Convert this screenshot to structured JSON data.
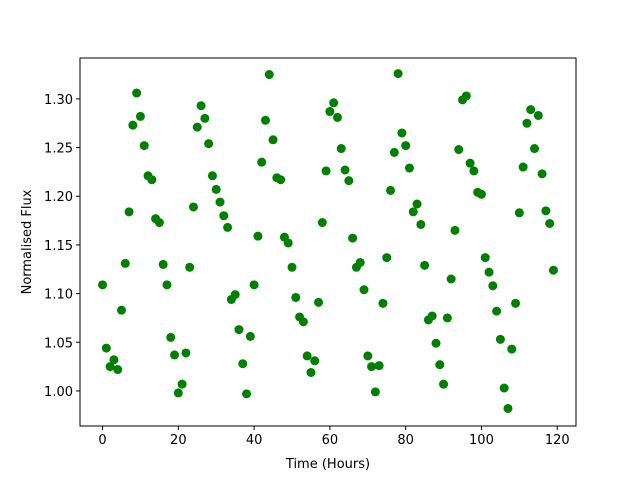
{
  "chart_data": {
    "type": "scatter",
    "color": "green",
    "xlabel": "Time (Hours)",
    "ylabel": "Normalised Flux",
    "x": [
      0,
      1,
      2,
      3,
      4,
      5,
      6,
      7,
      8,
      9,
      10,
      11,
      12,
      13,
      14,
      15,
      16,
      17,
      18,
      19,
      20,
      21,
      22,
      23,
      24,
      25,
      26,
      27,
      28,
      29,
      30,
      31,
      32,
      33,
      34,
      35,
      36,
      37,
      38,
      39,
      40,
      41,
      42,
      43,
      44,
      45,
      46,
      47,
      48,
      49,
      50,
      51,
      52,
      53,
      54,
      55,
      56,
      57,
      58,
      59,
      60,
      61,
      62,
      63,
      64,
      65,
      66,
      67,
      68,
      69,
      70,
      71,
      72,
      73,
      74,
      75,
      76,
      77,
      78,
      79,
      80,
      81,
      82,
      83,
      84,
      85,
      86,
      87,
      88,
      89,
      90,
      91,
      92,
      93,
      94,
      95,
      96,
      97,
      98,
      99,
      100,
      101,
      102,
      103,
      104,
      105,
      106,
      107,
      108,
      109,
      110,
      111,
      112,
      113,
      114,
      115,
      116,
      117,
      118,
      119
    ],
    "values": [
      1.109,
      1.044,
      1.025,
      1.032,
      1.022,
      1.083,
      1.131,
      1.184,
      1.273,
      1.306,
      1.282,
      1.252,
      1.221,
      1.217,
      1.177,
      1.173,
      1.13,
      1.109,
      1.055,
      1.037,
      0.998,
      1.007,
      1.039,
      1.127,
      1.189,
      1.271,
      1.293,
      1.28,
      1.254,
      1.221,
      1.207,
      1.194,
      1.18,
      1.168,
      1.094,
      1.099,
      1.063,
      1.028,
      0.997,
      1.056,
      1.109,
      1.159,
      1.235,
      1.278,
      1.325,
      1.258,
      1.219,
      1.217,
      1.158,
      1.152,
      1.127,
      1.096,
      1.076,
      1.071,
      1.036,
      1.019,
      1.031,
      1.091,
      1.173,
      1.226,
      1.287,
      1.296,
      1.281,
      1.249,
      1.227,
      1.216,
      1.157,
      1.127,
      1.132,
      1.104,
      1.036,
      1.025,
      0.999,
      1.026,
      1.09,
      1.137,
      1.206,
      1.245,
      1.326,
      1.265,
      1.252,
      1.229,
      1.184,
      1.192,
      1.171,
      1.129,
      1.073,
      1.077,
      1.049,
      1.027,
      1.007,
      1.075,
      1.115,
      1.165,
      1.248,
      1.299,
      1.303,
      1.234,
      1.226,
      1.204,
      1.202,
      1.137,
      1.122,
      1.108,
      1.082,
      1.053,
      1.003,
      0.982,
      1.043,
      1.09,
      1.183,
      1.23,
      1.275,
      1.289,
      1.249,
      1.283,
      1.223,
      1.185,
      1.172,
      1.124
    ],
    "xlim": [
      -5.95,
      124.95
    ],
    "ylim": [
      0.964,
      1.342
    ],
    "xticks": [
      0,
      20,
      40,
      60,
      80,
      100,
      120
    ],
    "yticks": [
      {
        "value": 1,
        "label": "1.00"
      },
      {
        "value": 1.05,
        "label": "1.05"
      },
      {
        "value": 1.1,
        "label": "1.10"
      },
      {
        "value": 1.15,
        "label": "1.15"
      },
      {
        "value": 1.2,
        "label": "1.20"
      },
      {
        "value": 1.25,
        "label": "1.25"
      },
      {
        "value": 1.3,
        "label": "1.30"
      }
    ]
  }
}
